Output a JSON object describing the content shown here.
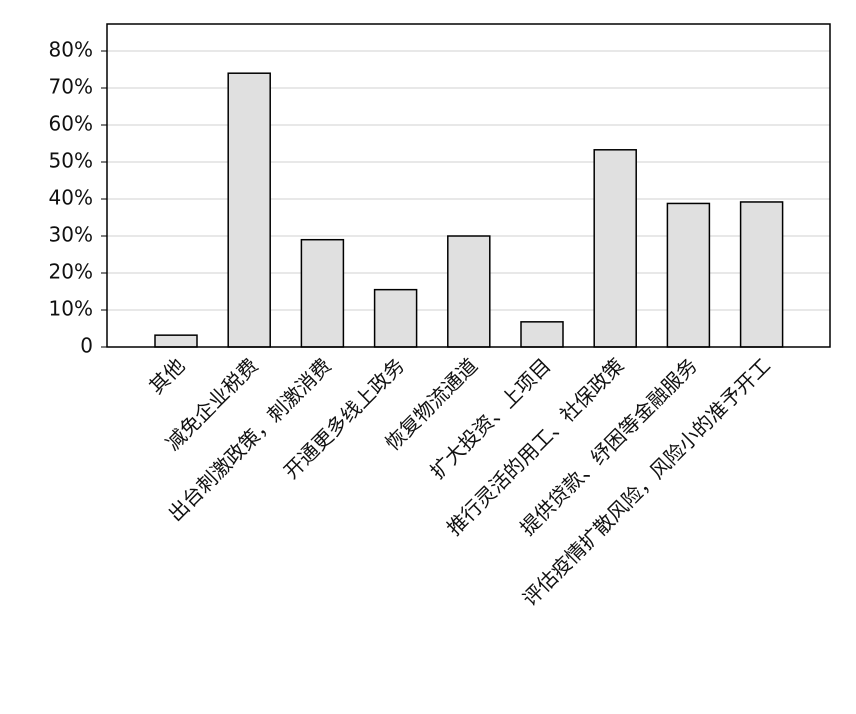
{
  "chart_data": {
    "type": "bar",
    "categories": [
      "其他",
      "减免企业税费",
      "出台刺激政策，刺激消费",
      "开通更多线上政务",
      "恢复物流通道",
      "扩大投资、上项目",
      "推行灵活的用工、社保政策",
      "提供贷款、纾困等金融服务",
      "评估疫情扩散风险，风险小的准予开工"
    ],
    "values": [
      3.2,
      74,
      29,
      15.5,
      30,
      6.8,
      53.3,
      38.8,
      39.2
    ],
    "color": "#e0e0e0",
    "ylim": [
      0,
      87.3
    ],
    "yticks": [
      {
        "value": 0,
        "label": "0"
      },
      {
        "value": 10,
        "label": "10%"
      },
      {
        "value": 20,
        "label": "20%"
      },
      {
        "value": 30,
        "label": "30%"
      },
      {
        "value": 40,
        "label": "40%"
      },
      {
        "value": 50,
        "label": "50%"
      },
      {
        "value": 60,
        "label": "60%"
      },
      {
        "value": 70,
        "label": "70%"
      },
      {
        "value": 80,
        "label": "80%"
      }
    ],
    "grid": true
  }
}
